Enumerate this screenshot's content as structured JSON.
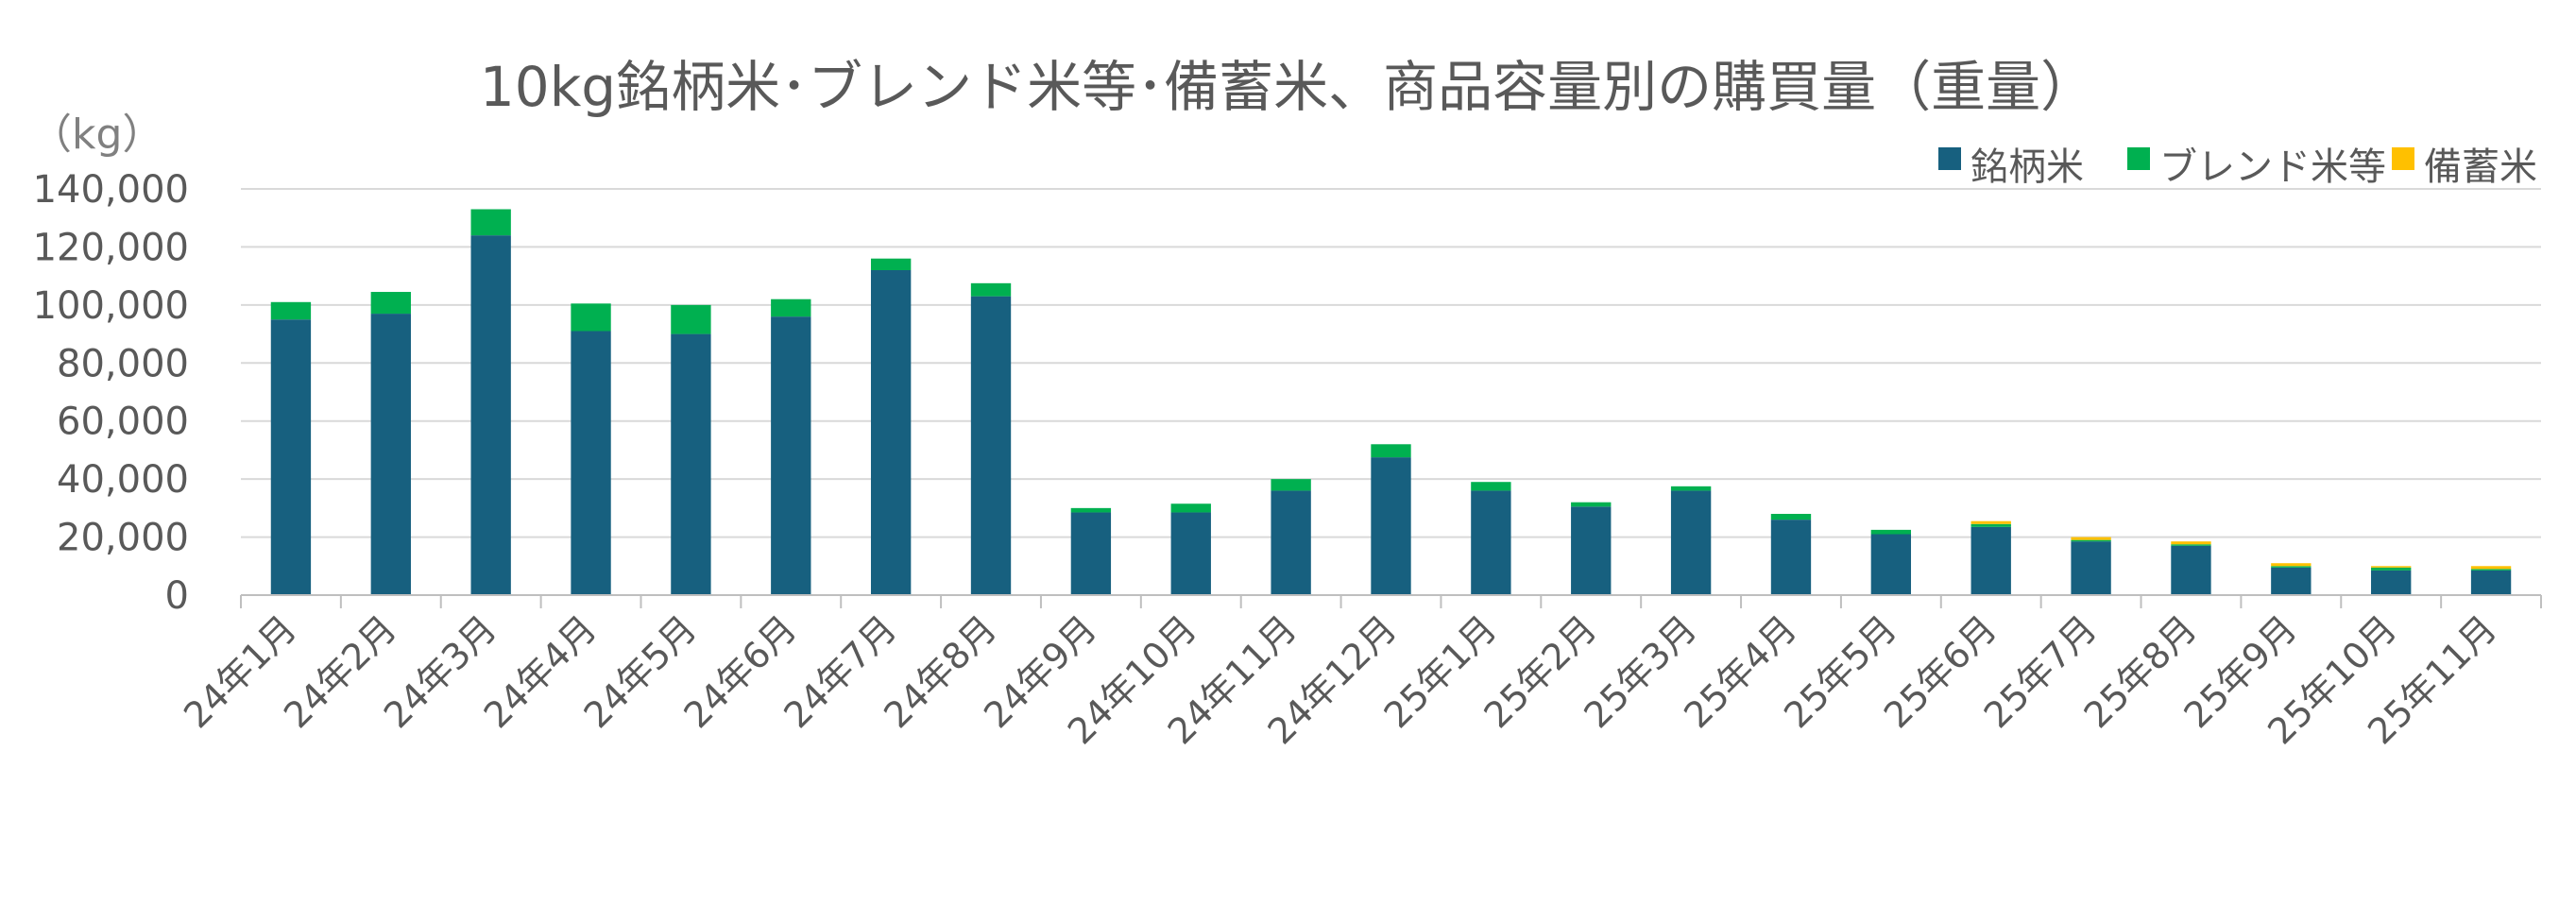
{
  "chart_data": {
    "type": "bar",
    "stacked": true,
    "title": "10kg銘柄米･ブレンド米等･備蓄米、商品容量別の購買量（重量）",
    "unit_label": "（kg）",
    "categories": [
      "24年1月",
      "24年2月",
      "24年3月",
      "24年4月",
      "24年5月",
      "24年6月",
      "24年7月",
      "24年8月",
      "24年9月",
      "24年10月",
      "24年11月",
      "24年12月",
      "25年1月",
      "25年2月",
      "25年3月",
      "25年4月",
      "25年5月",
      "25年6月",
      "25年7月",
      "25年8月",
      "25年9月",
      "25年10月",
      "25年11月"
    ],
    "series": [
      {
        "name": "銘柄米",
        "color": "#17607f",
        "values": [
          95000,
          97000,
          124000,
          91000,
          90000,
          96000,
          112000,
          103000,
          28500,
          28500,
          36000,
          47500,
          36000,
          30500,
          36000,
          26000,
          21000,
          23500,
          18500,
          17000,
          9500,
          8500,
          8500
        ]
      },
      {
        "name": "ブレンド米等",
        "color": "#00b050",
        "values": [
          6000,
          7500,
          9000,
          9500,
          10000,
          6000,
          4000,
          4500,
          1500,
          3000,
          4000,
          4500,
          3000,
          1500,
          1500,
          2000,
          1500,
          1000,
          500,
          500,
          500,
          1000,
          500
        ]
      },
      {
        "name": "備蓄米",
        "color": "#ffc000",
        "values": [
          0,
          0,
          0,
          0,
          0,
          0,
          0,
          0,
          0,
          0,
          0,
          0,
          0,
          0,
          0,
          0,
          0,
          1000,
          1000,
          1000,
          1000,
          500,
          1000
        ]
      }
    ],
    "ylim": [
      0,
      140000
    ],
    "yticks": [
      0,
      20000,
      40000,
      60000,
      80000,
      100000,
      120000,
      140000
    ],
    "ytick_labels": [
      "0",
      "20,000",
      "40,000",
      "60,000",
      "80,000",
      "100,000",
      "120,000",
      "140,000"
    ],
    "grid": true,
    "legend_position": "top-right"
  }
}
